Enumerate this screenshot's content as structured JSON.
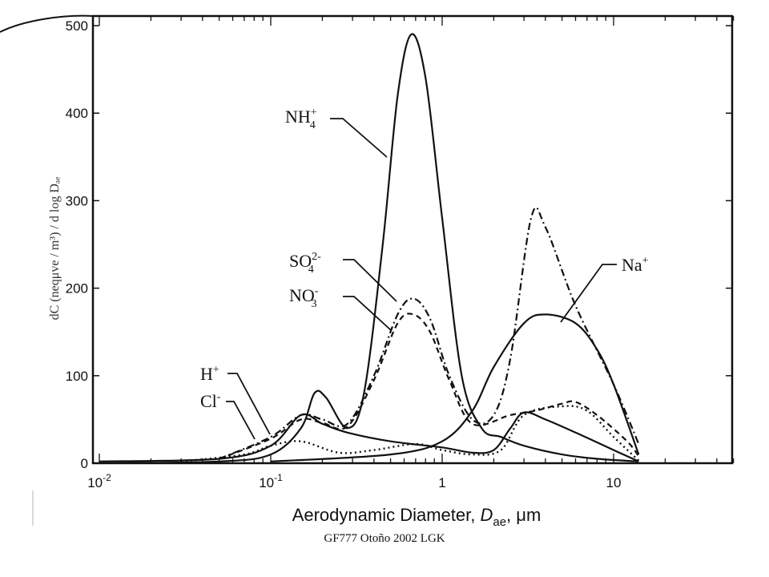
{
  "chart_data": {
    "type": "line",
    "xscale": "log",
    "xlim": [
      0.01,
      50
    ],
    "ylim": [
      0,
      500
    ],
    "ylabel": "dC (neqμve / m³) / d log Dₐₑ",
    "xlabel": {
      "text": "Aerodynamic  Diameter,",
      "var": "D",
      "sub": "ae",
      "unit": "μm"
    },
    "x_ticks": [
      {
        "value": 0.01,
        "base": "10",
        "exp": "-2"
      },
      {
        "value": 0.1,
        "base": "10",
        "exp": "-1"
      },
      {
        "value": 1,
        "base": "1",
        "exp": ""
      },
      {
        "value": 10,
        "base": "10",
        "exp": ""
      }
    ],
    "y_ticks": [
      0,
      100,
      200,
      300,
      400,
      500
    ],
    "y_tick_labels": [
      "0",
      "100",
      "200",
      "300",
      "400",
      "500"
    ],
    "grid": false,
    "series": [
      {
        "name": "NH4+",
        "style": "solid",
        "points": [
          [
            0.01,
            0
          ],
          [
            0.05,
            2
          ],
          [
            0.1,
            10
          ],
          [
            0.15,
            40
          ],
          [
            0.18,
            80
          ],
          [
            0.21,
            75
          ],
          [
            0.28,
            40
          ],
          [
            0.35,
            80
          ],
          [
            0.45,
            250
          ],
          [
            0.55,
            420
          ],
          [
            0.66,
            490
          ],
          [
            0.8,
            440
          ],
          [
            1.0,
            280
          ],
          [
            1.3,
            100
          ],
          [
            1.7,
            40
          ],
          [
            2.2,
            30
          ],
          [
            3,
            20
          ],
          [
            5,
            10
          ],
          [
            8,
            5
          ],
          [
            14,
            2
          ]
        ]
      },
      {
        "name": "SO4 2-",
        "style": "dashdot",
        "points": [
          [
            0.05,
            5
          ],
          [
            0.1,
            30
          ],
          [
            0.15,
            55
          ],
          [
            0.2,
            50
          ],
          [
            0.28,
            45
          ],
          [
            0.4,
            100
          ],
          [
            0.55,
            170
          ],
          [
            0.68,
            188
          ],
          [
            0.85,
            165
          ],
          [
            1.1,
            100
          ],
          [
            1.5,
            50
          ],
          [
            2,
            55
          ],
          [
            2.5,
            120
          ],
          [
            3.3,
            280
          ],
          [
            4,
            270
          ],
          [
            6,
            180
          ],
          [
            10,
            90
          ],
          [
            14,
            22
          ]
        ]
      },
      {
        "name": "NO3-",
        "style": "dashed",
        "points": [
          [
            0.05,
            5
          ],
          [
            0.1,
            28
          ],
          [
            0.15,
            50
          ],
          [
            0.2,
            46
          ],
          [
            0.28,
            42
          ],
          [
            0.4,
            95
          ],
          [
            0.55,
            160
          ],
          [
            0.68,
            170
          ],
          [
            0.85,
            150
          ],
          [
            1.1,
            95
          ],
          [
            1.5,
            45
          ],
          [
            2.5,
            55
          ],
          [
            3.5,
            60
          ],
          [
            5,
            68
          ],
          [
            6,
            70
          ],
          [
            8,
            55
          ],
          [
            12,
            25
          ],
          [
            14,
            8
          ]
        ]
      },
      {
        "name": "Na+",
        "style": "solid",
        "points": [
          [
            0.1,
            2
          ],
          [
            0.5,
            10
          ],
          [
            1,
            25
          ],
          [
            1.5,
            60
          ],
          [
            2,
            110
          ],
          [
            3,
            160
          ],
          [
            4,
            170
          ],
          [
            6,
            160
          ],
          [
            8,
            130
          ],
          [
            10,
            90
          ],
          [
            14,
            10
          ]
        ]
      },
      {
        "name": "H+",
        "style": "solid",
        "points": [
          [
            0.01,
            2
          ],
          [
            0.05,
            5
          ],
          [
            0.1,
            20
          ],
          [
            0.15,
            55
          ],
          [
            0.2,
            45
          ],
          [
            0.28,
            35
          ],
          [
            0.5,
            25
          ],
          [
            1,
            18
          ],
          [
            1.5,
            12
          ],
          [
            2,
            15
          ],
          [
            2.5,
            40
          ],
          [
            3,
            58
          ],
          [
            4,
            50
          ],
          [
            6,
            35
          ],
          [
            10,
            15
          ],
          [
            14,
            2
          ]
        ]
      },
      {
        "name": "Cl-",
        "style": "dotted",
        "points": [
          [
            0.03,
            2
          ],
          [
            0.07,
            10
          ],
          [
            0.1,
            20
          ],
          [
            0.15,
            25
          ],
          [
            0.25,
            12
          ],
          [
            0.4,
            15
          ],
          [
            0.7,
            22
          ],
          [
            1,
            15
          ],
          [
            1.5,
            10
          ],
          [
            2.2,
            15
          ],
          [
            3,
            55
          ],
          [
            5,
            65
          ],
          [
            7,
            60
          ],
          [
            10,
            30
          ],
          [
            14,
            3
          ]
        ]
      }
    ]
  },
  "labels": [
    {
      "name": "nh4-label",
      "base": "NH",
      "sub": "4",
      "sup": "+"
    },
    {
      "name": "so4-label",
      "base": "SO",
      "sub": "4",
      "sup": "2-"
    },
    {
      "name": "no3-label",
      "base": "NO",
      "sub": "3",
      "sup": "-"
    },
    {
      "name": "h-label",
      "base": "H",
      "sub": "",
      "sup": "+"
    },
    {
      "name": "cl-label",
      "base": "Cl",
      "sub": "",
      "sup": "-"
    },
    {
      "name": "na-label",
      "base": "Na",
      "sub": "",
      "sup": "+"
    }
  ],
  "footer": "GF777 Otoño 2002 LGK"
}
